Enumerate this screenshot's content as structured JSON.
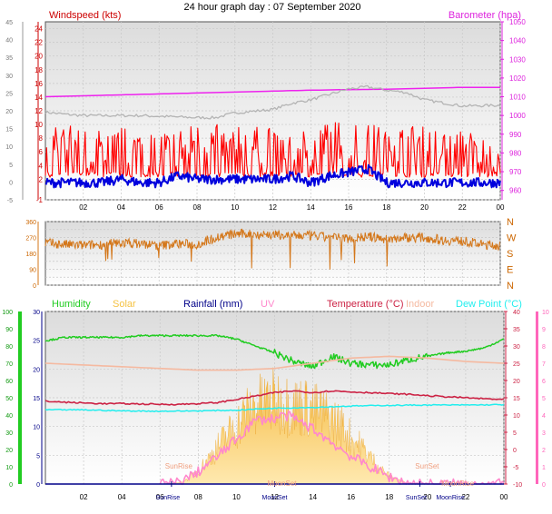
{
  "title": "24 hour graph day : 07 September 2020",
  "colors": {
    "wind_avg": "#0000dd",
    "wind_gust": "#ff0000",
    "barometer": "#ee22ee",
    "grey_line": "#b4b4b4",
    "wind_dir": "#d4771a",
    "humidity": "#22cc22",
    "solar": "#f5c242",
    "rainfall": "#000088",
    "uv": "#ff88cc",
    "temperature": "#cc2244",
    "indoor": "#f5b9a0",
    "dewpoint": "#22eeee"
  },
  "chart_data": [
    {
      "type": "line",
      "id": "wind",
      "title": "",
      "left_label": "Windspeed (kts)",
      "right_label": "Barometer (hpa)",
      "x_ticks": [
        "02",
        "04",
        "06",
        "08",
        "10",
        "12",
        "14",
        "16",
        "18",
        "20",
        "22",
        "00"
      ],
      "x_range_hours": [
        0,
        24
      ],
      "y_left": {
        "range": [
          -1,
          25
        ],
        "ticks": [
          -1,
          2,
          4,
          6,
          8,
          10,
          12,
          14,
          16,
          18,
          20,
          22,
          24
        ]
      },
      "y_outer": {
        "range": [
          -5,
          45
        ],
        "ticks": [
          -5,
          0,
          5,
          10,
          15,
          20,
          25,
          30,
          35,
          40,
          45
        ]
      },
      "y_right": {
        "range": [
          955,
          1050
        ],
        "ticks": [
          960,
          970,
          980,
          990,
          1000,
          1010,
          1020,
          1030,
          1040,
          1050
        ]
      },
      "series": [
        {
          "key": "barometer",
          "axis": "right",
          "x": [
            0,
            2,
            4,
            6,
            8,
            10,
            12,
            14,
            16,
            18,
            20,
            22,
            24
          ],
          "values": [
            1010,
            1010.5,
            1011,
            1011.5,
            1012,
            1012.5,
            1013,
            1013.5,
            1013.8,
            1014,
            1014.5,
            1015,
            1015
          ]
        },
        {
          "key": "grey_line",
          "axis": "left",
          "x": [
            0,
            1,
            2,
            5,
            8,
            9,
            10,
            12,
            13,
            14,
            14.5,
            15.5,
            16,
            17,
            18,
            19,
            20,
            22,
            24
          ],
          "values": [
            11.8,
            11.5,
            11.3,
            11.3,
            11,
            11,
            11.7,
            12.2,
            13.1,
            13.6,
            14,
            14.8,
            15.2,
            15.5,
            15,
            14.7,
            13.6,
            12.7,
            12.8
          ]
        },
        {
          "key": "wind_gust",
          "axis": "left",
          "x": [
            0,
            1,
            2,
            3,
            4,
            5,
            6,
            7,
            8,
            9,
            10,
            11,
            12,
            13,
            14,
            15,
            16,
            17,
            18,
            19,
            20,
            21,
            22,
            23,
            24
          ],
          "values": [
            5,
            6,
            5.5,
            5,
            5.5,
            5,
            5,
            5.5,
            6,
            6,
            5.5,
            5.5,
            5.5,
            6,
            5,
            6.5,
            6.5,
            6,
            5.5,
            6,
            5.5,
            5,
            5,
            5,
            5
          ]
        },
        {
          "key": "wind_avg",
          "axis": "left",
          "x": [
            0,
            1,
            2,
            3,
            4,
            5,
            6,
            7,
            8,
            9,
            10,
            11,
            12,
            13,
            14,
            15,
            16,
            17,
            18,
            19,
            20,
            21,
            22,
            23,
            24
          ],
          "values": [
            1.5,
            1.5,
            1.5,
            1.5,
            2,
            1.5,
            1.5,
            2.5,
            2,
            2,
            2,
            2,
            2,
            2.5,
            1.5,
            2.5,
            3,
            3.5,
            1.5,
            1.5,
            1.5,
            1.5,
            1.5,
            1.5,
            1.5
          ]
        }
      ]
    },
    {
      "type": "line",
      "id": "wind_direction",
      "title": "",
      "x_range_hours": [
        0,
        24
      ],
      "y_left": {
        "range": [
          0,
          360
        ],
        "ticks": [
          0,
          45,
          90,
          135,
          180,
          225,
          270,
          315,
          360
        ]
      },
      "right_ticks": [
        "N",
        "W",
        "S",
        "E",
        "N"
      ],
      "series": [
        {
          "key": "wind_dir",
          "x": [
            0,
            1,
            2,
            3,
            4,
            5,
            6,
            7,
            8,
            9,
            10,
            11,
            12,
            13,
            14,
            15,
            16,
            17,
            18,
            19,
            20,
            21,
            22,
            23,
            24
          ],
          "values": [
            240,
            230,
            225,
            230,
            240,
            235,
            225,
            235,
            230,
            270,
            290,
            290,
            285,
            280,
            280,
            270,
            265,
            275,
            260,
            270,
            270,
            255,
            250,
            230,
            225
          ]
        }
      ]
    },
    {
      "type": "line",
      "id": "combined",
      "title": "",
      "labels": [
        "Humidity",
        "Solar",
        "Rainfall (mm)",
        "UV",
        "Temperature (°C)",
        "Indoor",
        "Dew Point (°C)"
      ],
      "x_ticks": [
        "02",
        "04",
        "06",
        "08",
        "10",
        "12",
        "14",
        "16",
        "18",
        "20",
        "22",
        "00"
      ],
      "x_range_hours": [
        0,
        24
      ],
      "y_humidity": {
        "range": [
          0,
          100
        ],
        "ticks": [
          0,
          10,
          20,
          30,
          40,
          50,
          60,
          70,
          80,
          90,
          100
        ]
      },
      "y_rain": {
        "range": [
          0,
          30
        ],
        "ticks": [
          0,
          5,
          10,
          15,
          20,
          25,
          30
        ]
      },
      "y_temp": {
        "range": [
          -10,
          40
        ],
        "ticks": [
          -10,
          -5,
          0,
          5,
          10,
          15,
          20,
          25,
          30,
          35,
          40
        ]
      },
      "y_uv": {
        "range": [
          0,
          10
        ],
        "ticks": [
          0,
          1,
          2,
          3,
          4,
          5,
          6,
          7,
          8,
          9,
          10
        ]
      },
      "events": [
        {
          "label": "SunRise",
          "hour": 6.6
        },
        {
          "label": "MoonSet",
          "hour": 12.0
        },
        {
          "label": "SunSet",
          "hour": 19.6
        },
        {
          "label": "MoonRise",
          "hour": 21.2
        }
      ],
      "series": [
        {
          "key": "humidity",
          "axis": "humidity",
          "x": [
            0,
            1,
            2,
            3,
            4,
            5,
            6,
            7,
            8,
            9,
            10,
            11,
            12,
            13,
            14,
            15,
            16,
            17,
            18,
            19,
            20,
            21,
            22,
            23,
            24
          ],
          "values": [
            83,
            85,
            85,
            85,
            85,
            86,
            86,
            86,
            86,
            86,
            84,
            80,
            76,
            71,
            68,
            74,
            70,
            69,
            69,
            72,
            74,
            76,
            77,
            79,
            84
          ]
        },
        {
          "key": "indoor",
          "axis": "temp",
          "x": [
            0,
            2,
            4,
            6,
            8,
            10,
            12,
            14,
            16,
            18,
            20,
            22,
            24
          ],
          "values": [
            25,
            24.5,
            24,
            23.5,
            23,
            23,
            23.5,
            25,
            26.5,
            27,
            26.5,
            25.5,
            25
          ]
        },
        {
          "key": "temperature",
          "axis": "temp",
          "x": [
            0,
            1,
            2,
            3,
            4,
            5,
            6,
            7,
            8,
            9,
            10,
            11,
            12,
            13,
            14,
            15,
            16,
            17,
            18,
            19,
            20,
            21,
            22,
            23,
            24
          ],
          "values": [
            14,
            13.7,
            13.5,
            13.3,
            13.3,
            13.2,
            13.1,
            13.1,
            13.3,
            13.6,
            14.5,
            15.5,
            16.5,
            17,
            16.5,
            17,
            16.7,
            16.5,
            16.2,
            16,
            15.6,
            15.3,
            15,
            14.7,
            14.5
          ]
        },
        {
          "key": "dewpoint",
          "axis": "temp",
          "x": [
            0,
            2,
            4,
            6,
            8,
            10,
            12,
            14,
            16,
            18,
            20,
            22,
            24
          ],
          "values": [
            11.5,
            11.5,
            11.2,
            11.1,
            11.2,
            11.4,
            12,
            12.2,
            12.6,
            12.8,
            12.9,
            12.9,
            13
          ]
        },
        {
          "key": "solar",
          "axis": "uv",
          "x": [
            6,
            6.5,
            7,
            7.5,
            8,
            8.5,
            9,
            9.5,
            10,
            10.5,
            11,
            11.5,
            12,
            12.5,
            13,
            13.5,
            14,
            14.5,
            15,
            15.5,
            16,
            16.5,
            17,
            17.5,
            18,
            18.5,
            19,
            19.5
          ],
          "values": [
            0,
            0.05,
            0.1,
            0.4,
            1.0,
            1.8,
            2.7,
            3.6,
            4.3,
            5.2,
            5.8,
            6.0,
            6.2,
            6.0,
            5.8,
            5.8,
            5.5,
            5.2,
            4.8,
            4.3,
            3.4,
            2.8,
            2.0,
            1.2,
            0.6,
            0.3,
            0.1,
            0
          ]
        },
        {
          "key": "uv",
          "axis": "uv",
          "x": [
            6,
            7,
            8,
            9,
            10,
            11,
            12,
            12.5,
            13,
            14,
            15,
            16,
            17,
            18,
            19,
            20,
            21,
            22,
            23,
            24
          ],
          "values": [
            0,
            0.1,
            0.7,
            1.6,
            2.6,
            3.7,
            3.8,
            4.0,
            3.8,
            3.2,
            2.4,
            1.6,
            1.0,
            0.4,
            0.05,
            0,
            0,
            0,
            0,
            0
          ]
        },
        {
          "key": "rainfall",
          "axis": "rain",
          "x": [
            0,
            24
          ],
          "values": [
            0,
            0
          ]
        }
      ]
    }
  ]
}
